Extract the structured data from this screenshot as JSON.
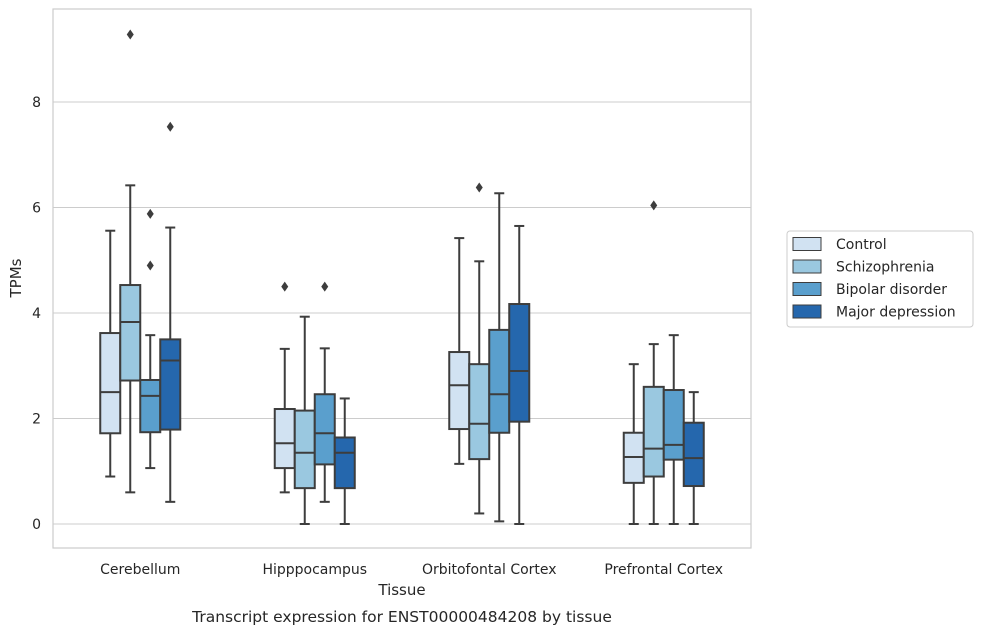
{
  "caption": "Transcript expression for ENST00000484208 by tissue",
  "chart_data": {
    "type": "box",
    "xlabel": "Tissue",
    "ylabel": "TPMs",
    "ylim": [
      -0.45,
      9.75
    ],
    "yticks": [
      "0",
      "2",
      "4",
      "6",
      "8"
    ],
    "categories": [
      "Cerebellum",
      "Hipppocampus",
      "Orbitofontal Cortex",
      "Prefrontal Cortex"
    ],
    "legend": {
      "position": "right",
      "entries": [
        "Control",
        "Schizophrenia",
        "Bipolar disorder",
        "Major depression"
      ]
    },
    "grid": true,
    "colors": [
      "#d1e2f2",
      "#9ac8e0",
      "#5a9fcd",
      "#2567ad"
    ],
    "series": [
      {
        "name": "Control",
        "boxes": [
          {
            "whisker_low": 0.9,
            "q1": 1.72,
            "median": 2.5,
            "q3": 3.62,
            "whisker_high": 5.56,
            "outliers": []
          },
          {
            "whisker_low": 0.6,
            "q1": 1.06,
            "median": 1.53,
            "q3": 2.18,
            "whisker_high": 3.32,
            "outliers": [
              4.5
            ]
          },
          {
            "whisker_low": 1.14,
            "q1": 1.8,
            "median": 2.63,
            "q3": 3.26,
            "whisker_high": 5.42,
            "outliers": []
          },
          {
            "whisker_low": 0.0,
            "q1": 0.78,
            "median": 1.27,
            "q3": 1.73,
            "whisker_high": 3.03,
            "outliers": []
          }
        ]
      },
      {
        "name": "Schizophrenia",
        "boxes": [
          {
            "whisker_low": 0.6,
            "q1": 2.72,
            "median": 3.83,
            "q3": 4.53,
            "whisker_high": 6.42,
            "outliers": [
              9.28
            ]
          },
          {
            "whisker_low": 0.0,
            "q1": 0.68,
            "median": 1.35,
            "q3": 2.15,
            "whisker_high": 3.93,
            "outliers": []
          },
          {
            "whisker_low": 0.2,
            "q1": 1.23,
            "median": 1.9,
            "q3": 3.03,
            "whisker_high": 4.98,
            "outliers": [
              6.38
            ]
          },
          {
            "whisker_low": 0.0,
            "q1": 0.9,
            "median": 1.43,
            "q3": 2.6,
            "whisker_high": 3.41,
            "outliers": [
              6.04
            ]
          }
        ]
      },
      {
        "name": "Bipolar disorder",
        "boxes": [
          {
            "whisker_low": 1.06,
            "q1": 1.74,
            "median": 2.43,
            "q3": 2.73,
            "whisker_high": 3.58,
            "outliers": [
              4.9,
              5.88
            ]
          },
          {
            "whisker_low": 0.42,
            "q1": 1.13,
            "median": 1.72,
            "q3": 2.46,
            "whisker_high": 3.33,
            "outliers": [
              4.5
            ]
          },
          {
            "whisker_low": 0.05,
            "q1": 1.73,
            "median": 2.46,
            "q3": 3.68,
            "whisker_high": 6.27,
            "outliers": []
          },
          {
            "whisker_low": 0.0,
            "q1": 1.22,
            "median": 1.5,
            "q3": 2.54,
            "whisker_high": 3.58,
            "outliers": []
          }
        ]
      },
      {
        "name": "Major depression",
        "boxes": [
          {
            "whisker_low": 0.42,
            "q1": 1.79,
            "median": 3.1,
            "q3": 3.5,
            "whisker_high": 5.62,
            "outliers": [
              7.53
            ]
          },
          {
            "whisker_low": 0.0,
            "q1": 0.68,
            "median": 1.35,
            "q3": 1.64,
            "whisker_high": 2.38,
            "outliers": []
          },
          {
            "whisker_low": 0.0,
            "q1": 1.94,
            "median": 2.9,
            "q3": 4.17,
            "whisker_high": 5.65,
            "outliers": []
          },
          {
            "whisker_low": 0.0,
            "q1": 0.72,
            "median": 1.25,
            "q3": 1.92,
            "whisker_high": 2.5,
            "outliers": []
          }
        ]
      }
    ]
  }
}
